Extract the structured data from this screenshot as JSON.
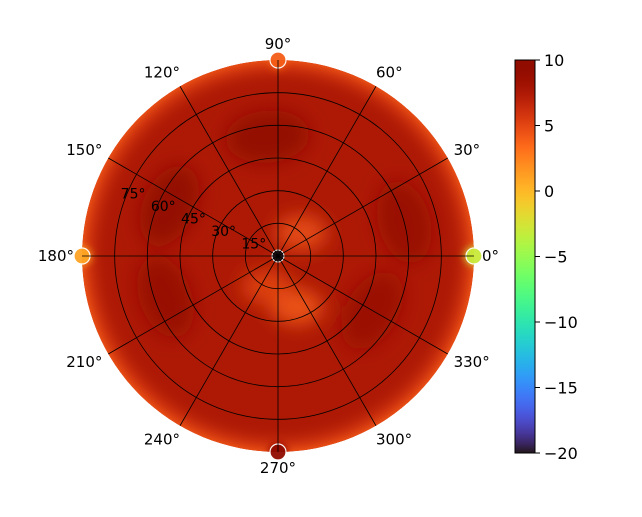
{
  "chart_data": {
    "type": "heatmap",
    "projection": "polar",
    "title": "",
    "angular_ticks": [
      "0°",
      "30°",
      "60°",
      "90°",
      "120°",
      "150°",
      "180°",
      "210°",
      "240°",
      "270°",
      "300°",
      "330°"
    ],
    "angular_tick_values_deg": [
      0,
      30,
      60,
      90,
      120,
      150,
      180,
      210,
      240,
      270,
      300,
      330
    ],
    "radial_ticks": [
      "15°",
      "30°",
      "45°",
      "60°",
      "75°"
    ],
    "radial_tick_values": [
      15,
      30,
      45,
      60,
      75
    ],
    "radial_range": [
      0,
      90
    ],
    "grid": true,
    "colorbar": {
      "colormap": "turbo",
      "range": [
        -20,
        10
      ],
      "ticks": [
        10,
        5,
        0,
        -5,
        -10,
        -15,
        -20
      ],
      "tick_labels": [
        "10",
        "5",
        "0",
        "−5",
        "−10",
        "−15",
        "−20"
      ]
    },
    "field": {
      "description_of_values": "mostly ~7.5 everywhere, darker (~9) patches, lighter (~4) rim and center",
      "background_value": 7.5,
      "rim_value": 4.5,
      "center_value": -20,
      "high_patches": [
        {
          "angle_deg": 95,
          "r": 55,
          "value": 9.3
        },
        {
          "angle_deg": 155,
          "r": 55,
          "value": 9.4
        },
        {
          "angle_deg": 200,
          "r": 55,
          "value": 8.9
        },
        {
          "angle_deg": 15,
          "r": 60,
          "value": 8.8
        },
        {
          "angle_deg": 330,
          "r": 50,
          "value": 8.6
        }
      ],
      "low_patches": [
        {
          "angle_deg": 45,
          "r": 15,
          "value": 4.5
        },
        {
          "angle_deg": 290,
          "r": 25,
          "value": 4.0
        },
        {
          "angle_deg": 250,
          "r": 15,
          "value": 5.0
        }
      ],
      "rim_markers": [
        {
          "angle_deg": 0,
          "value": -3
        },
        {
          "angle_deg": 90,
          "value": 4
        },
        {
          "angle_deg": 180,
          "value": 1
        },
        {
          "angle_deg": 270,
          "value": 9.5
        }
      ]
    }
  }
}
